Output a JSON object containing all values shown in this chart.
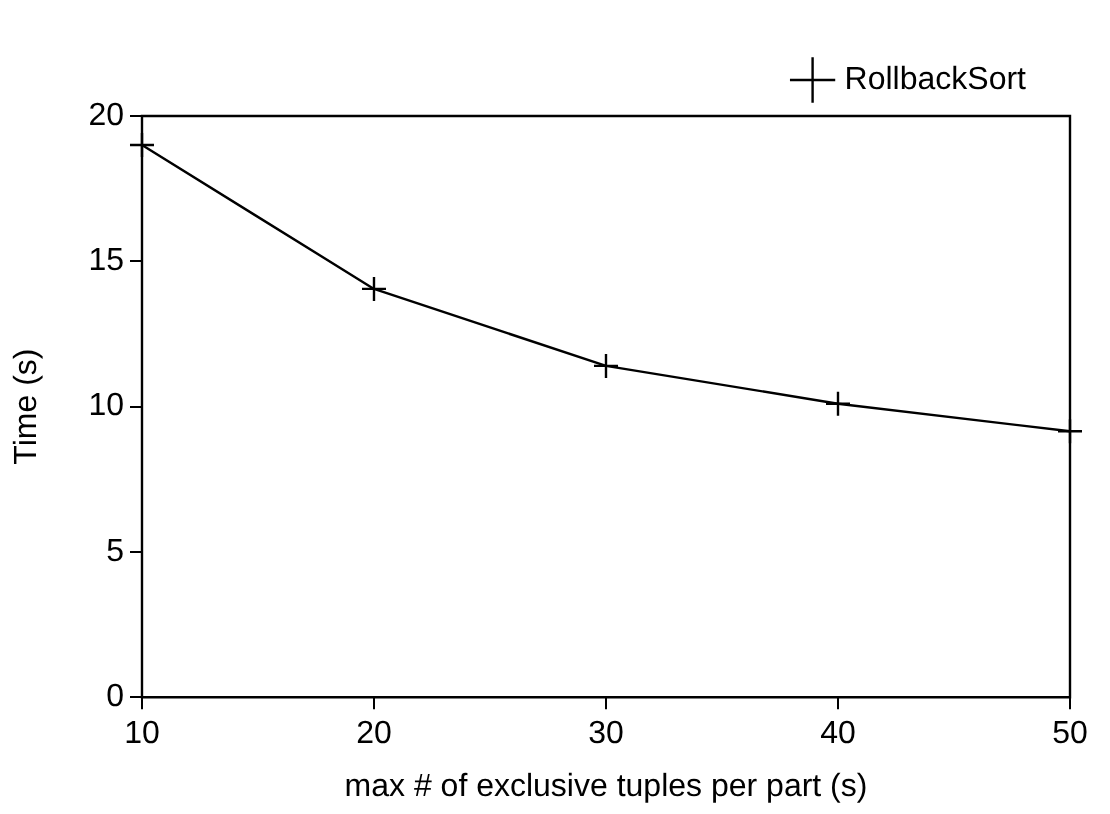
{
  "chart_data": {
    "type": "line",
    "xlabel": "max # of exclusive tuples per part (s)",
    "ylabel": "Time (s)",
    "x": [
      10,
      20,
      30,
      40,
      50
    ],
    "series": [
      {
        "name": "RollbackSort",
        "color": "#000000",
        "values": [
          19.0,
          14.05,
          11.4,
          10.1,
          9.15
        ]
      }
    ],
    "xlim": [
      10,
      50
    ],
    "xticks": [
      10,
      20,
      30,
      40,
      50
    ],
    "ylim": [
      0,
      20
    ],
    "yticks": [
      0,
      5,
      10,
      15,
      20
    ],
    "grid": false,
    "legend": "top right",
    "marker": "cross",
    "line_style": "solid"
  }
}
